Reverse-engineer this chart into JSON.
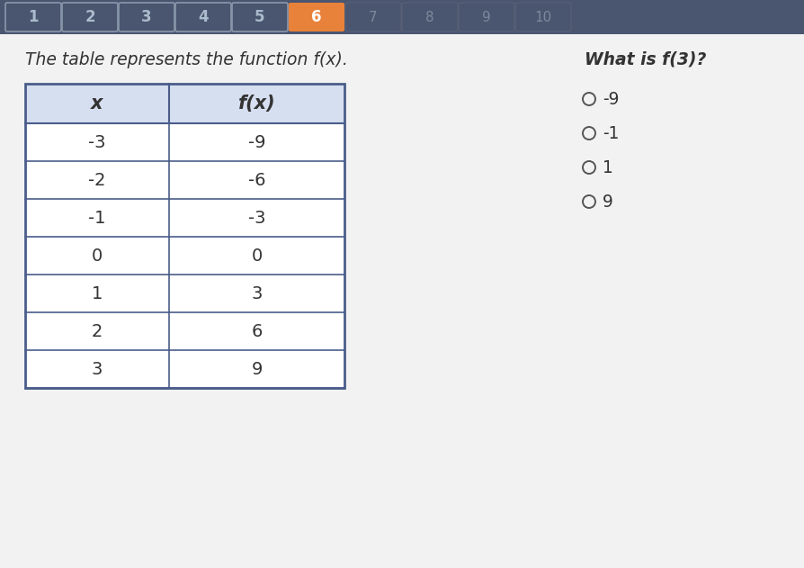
{
  "title_text": "The table represents the function f(x).",
  "question_text": "What is f(3)?",
  "col_headers": [
    "x",
    "f(x)"
  ],
  "table_data": [
    [
      "-3",
      "-9"
    ],
    [
      "-2",
      "-6"
    ],
    [
      "-1",
      "-3"
    ],
    [
      "0",
      "0"
    ],
    [
      "1",
      "3"
    ],
    [
      "2",
      "6"
    ],
    [
      "3",
      "9"
    ]
  ],
  "choices": [
    "-9",
    "-1",
    "1",
    "9"
  ],
  "header_bg": "#d6dff0",
  "row_bg": "#ffffff",
  "border_color": "#4a5d8a",
  "title_color": "#333333",
  "text_color": "#333333",
  "tab_bar_bg": "#4a5570",
  "tab_labels": [
    "1",
    "2",
    "3",
    "4",
    "5",
    "6",
    "7",
    "8",
    "9",
    "10"
  ],
  "tab_active_color": "#e8823a",
  "tab_inactive_outline": "#8899aa",
  "tab_inactive_text": "#aabbcc",
  "tab_faint_text": "#7a8a9a",
  "content_bg": "#e8e8e8",
  "question_color": "#333333"
}
